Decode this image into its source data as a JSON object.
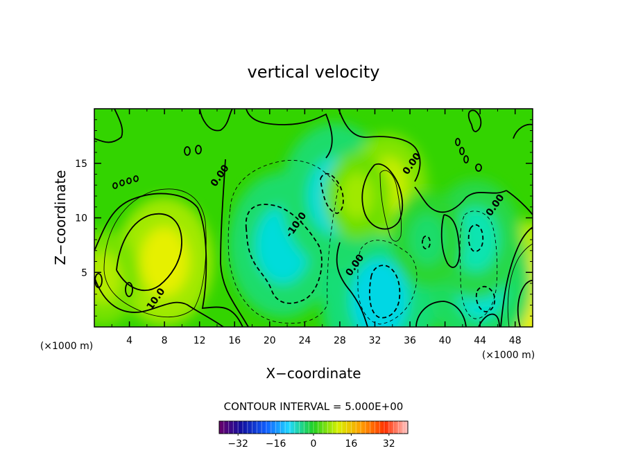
{
  "chart_data": {
    "type": "heatmap",
    "title": "vertical velocity",
    "xlabel": "X−coordinate",
    "ylabel": "Z−coordinate",
    "x_unit": "(×1000 m)",
    "y_unit": "(×1000 m)",
    "xlim": [
      0,
      50
    ],
    "ylim": [
      0,
      20
    ],
    "xticks": [
      4,
      8,
      12,
      16,
      20,
      24,
      28,
      32,
      36,
      40,
      44,
      48
    ],
    "yticks": [
      5,
      10,
      15
    ],
    "contour_interval_text": "CONTOUR INTERVAL = 5.000E+00",
    "contour_labels": [
      {
        "text": "10.0",
        "x": 7.3,
        "y": 2.4
      },
      {
        "text": "-10.0",
        "x": 23.3,
        "y": 9.2
      },
      {
        "text": "0.00",
        "x": 14.6,
        "y": 13.7
      },
      {
        "text": "0.00",
        "x": 30.0,
        "y": 5.5
      },
      {
        "text": "0.00",
        "x": 36.5,
        "y": 14.8
      },
      {
        "text": "0.00",
        "x": 46.0,
        "y": 11.0
      }
    ],
    "colorbar": {
      "range": [
        -40,
        40
      ],
      "tick_labels": [
        "−32",
        "−16",
        "0",
        "16",
        "32"
      ],
      "tick_values": [
        -32,
        -16,
        0,
        16,
        32
      ]
    },
    "features": [
      {
        "x": 8,
        "z": 6,
        "w": 10.0,
        "note": "updraft core"
      },
      {
        "x": 49.5,
        "z": 3,
        "w": 12.0,
        "note": "updraft core"
      },
      {
        "x": 1,
        "z": 4.5,
        "w": 6.0,
        "note": "updraft"
      },
      {
        "x": 21.5,
        "z": 7.5,
        "w": -12.0,
        "note": "downdraft core"
      },
      {
        "x": 32.5,
        "z": 2.5,
        "w": -13.0,
        "note": "downdraft core"
      },
      {
        "x": 44,
        "z": 4,
        "w": -11.0,
        "note": "downdraft core"
      },
      {
        "x": 43.5,
        "z": 8,
        "w": -9.0,
        "note": "downdraft"
      },
      {
        "x": 27.5,
        "z": 12,
        "w": -12.0,
        "note": "downdraft"
      },
      {
        "x": 33.5,
        "z": 13,
        "w": 7.0,
        "note": "updraft"
      },
      {
        "x": 38,
        "z": 8,
        "w": -6.0,
        "note": "downdraft"
      },
      {
        "x": 30,
        "z": 12,
        "w": 5.0,
        "note": "updraft"
      }
    ],
    "colors": {
      "field_background": "#33d400",
      "contour": "#000000"
    }
  }
}
